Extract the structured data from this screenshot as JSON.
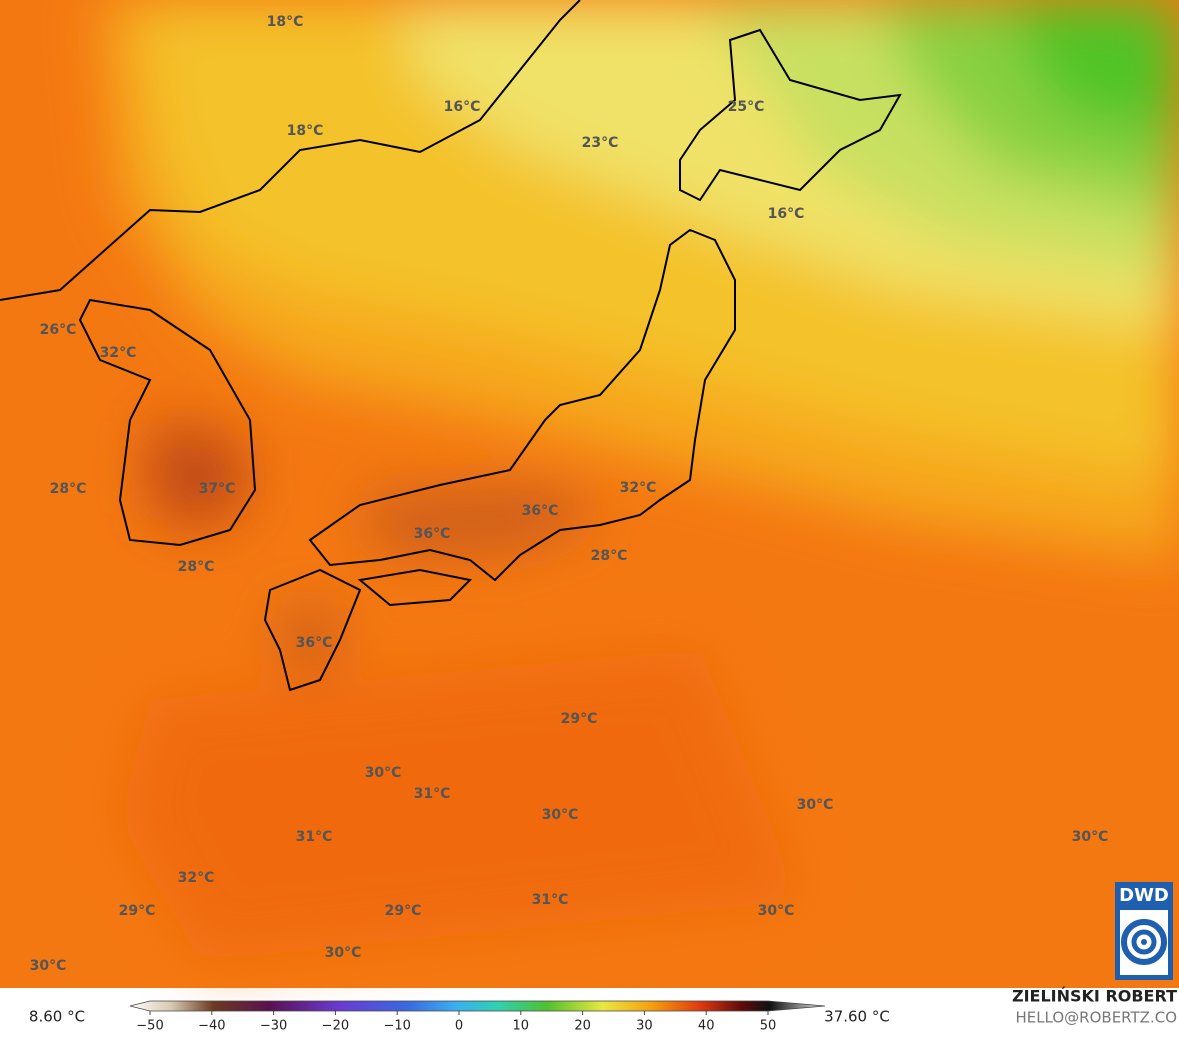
{
  "map_labels": [
    "18°C",
    "16°C",
    "18°C",
    "23°C",
    "25°C",
    "16°C",
    "26°C",
    "32°C",
    "28°C",
    "37°C",
    "28°C",
    "36°C",
    "36°C",
    "32°C",
    "28°C",
    "36°C",
    "29°C",
    "30°C",
    "31°C",
    "30°C",
    "30°C",
    "30°C",
    "31°C",
    "32°C",
    "29°C",
    "29°C",
    "31°C",
    "30°C",
    "30°C",
    "30°C"
  ],
  "colorbar": {
    "min_label": "8.60 °C",
    "max_label": "37.60 °C",
    "ticks": [
      {
        "value": -50,
        "label": "−50"
      },
      {
        "value": -40,
        "label": "−40"
      },
      {
        "value": -30,
        "label": "−30"
      },
      {
        "value": -20,
        "label": "−20"
      },
      {
        "value": -10,
        "label": "−10"
      },
      0,
      10,
      20,
      30,
      40,
      50
    ],
    "range": [
      -50,
      50
    ]
  },
  "logo": "DWD",
  "author": "ZIELIŃSKI ROBERT",
  "contact": "HELLO@ROBERTZ.CO"
}
